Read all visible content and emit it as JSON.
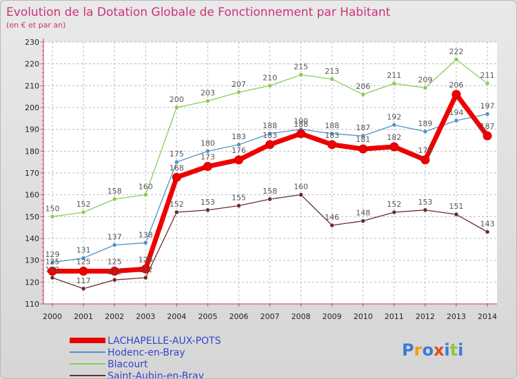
{
  "chart_data": {
    "type": "line",
    "title": "Evolution de la Dotation Globale de Fonctionnement par Habitant",
    "subtitle": "(en € et par an)",
    "x": [
      "2000",
      "2001",
      "2002",
      "2003",
      "2004",
      "2005",
      "2006",
      "2007",
      "2008",
      "2009",
      "2010",
      "2011",
      "2012",
      "2013",
      "2014"
    ],
    "ylim": [
      110,
      230
    ],
    "yticks": [
      110,
      120,
      130,
      140,
      150,
      160,
      170,
      180,
      190,
      200,
      210,
      220,
      230
    ],
    "grid": true,
    "legend_position": "bottom-left",
    "series": [
      {
        "name": "Blacourt",
        "color": "#88cc55",
        "values": [
          150,
          152,
          158,
          160,
          200,
          203,
          207,
          210,
          215,
          213,
          206,
          211,
          209,
          222,
          211
        ]
      },
      {
        "name": "Hodenc-en-Bray",
        "color": "#4f92c8",
        "values": [
          129,
          131,
          137,
          138,
          175,
          180,
          183,
          188,
          190,
          188,
          187,
          192,
          189,
          194,
          197
        ]
      },
      {
        "name": "Saint-Aubin-en-Bray",
        "color": "#6b2a2a",
        "values": [
          122,
          117,
          121,
          122,
          152,
          153,
          155,
          158,
          160,
          146,
          148,
          152,
          153,
          151,
          143
        ]
      },
      {
        "name": "LACHAPELLE-AUX-POTS",
        "color": "#ee0000",
        "values": [
          125,
          125,
          125,
          126,
          168,
          173,
          176,
          183,
          188,
          183,
          181,
          182,
          176,
          206,
          187
        ]
      }
    ],
    "legend_order": [
      "LACHAPELLE-AUX-POTS",
      "Hodenc-en-Bray",
      "Blacourt",
      "Saint-Aubin-en-Bray"
    ],
    "logo": "Proxiti"
  }
}
